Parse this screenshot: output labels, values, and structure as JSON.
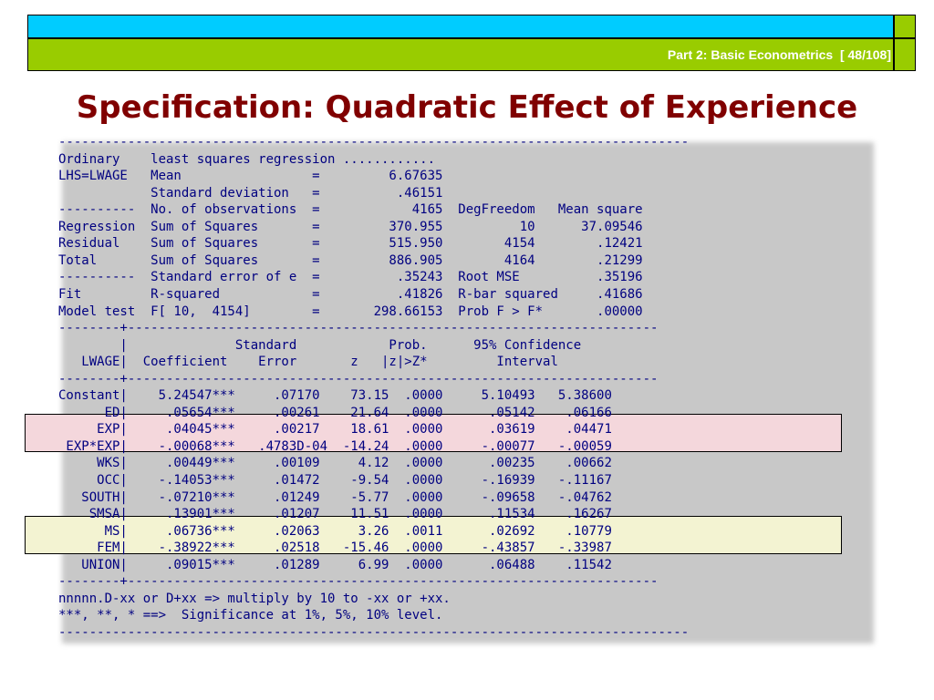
{
  "header": {
    "part_label": "Part 2: Basic Econometrics  [ 48/108]"
  },
  "slide": {
    "title": "Specification: Quadratic Effect of Experience"
  },
  "output_lines": [
    "----------------------------------------------------------------------------------",
    "Ordinary    least squares regression ............",
    "LHS=LWAGE   Mean                 =         6.67635",
    "            Standard deviation   =          .46151",
    "----------  No. of observations  =            4165  DegFreedom   Mean square",
    "Regression  Sum of Squares       =         370.955          10      37.09546",
    "Residual    Sum of Squares       =         515.950        4154        .12421",
    "Total       Sum of Squares       =         886.905        4164        .21299",
    "----------  Standard error of e  =          .35243  Root MSE          .35196",
    "Fit         R-squared            =          .41826  R-bar squared     .41686",
    "Model test  F[ 10,  4154]        =       298.66153  Prob F > F*       .00000",
    "--------+---------------------------------------------------------------------",
    "        |              Standard            Prob.      95% Confidence",
    "   LWAGE|  Coefficient    Error       z   |z|>Z*         Interval",
    "--------+---------------------------------------------------------------------",
    "Constant|    5.24547***     .07170    73.15  .0000     5.10493   5.38600",
    "      ED|     .05654***     .00261    21.64  .0000      .05142    .06166",
    "     EXP|     .04045***     .00217    18.61  .0000      .03619    .04471",
    " EXP*EXP|    -.00068***   .4783D-04  -14.24  .0000     -.00077   -.00059",
    "     WKS|     .00449***     .00109     4.12  .0000      .00235    .00662",
    "     OCC|    -.14053***     .01472    -9.54  .0000     -.16939   -.11167",
    "   SOUTH|    -.07210***     .01249    -5.77  .0000     -.09658   -.04762",
    "    SMSA|     .13901***     .01207    11.51  .0000      .11534    .16267",
    "      MS|     .06736***     .02063     3.26  .0011      .02692    .10779",
    "     FEM|    -.38922***     .02518   -15.46  .0000     -.43857   -.33987",
    "   UNION|     .09015***     .01289     6.99  .0000      .06488    .11542",
    "--------+---------------------------------------------------------------------",
    "nnnnn.D-xx or D+xx => multiply by 10 to -xx or +xx.",
    "***, **, * ==>  Significance at 1%, 5%, 10% level.",
    "----------------------------------------------------------------------------------"
  ]
}
